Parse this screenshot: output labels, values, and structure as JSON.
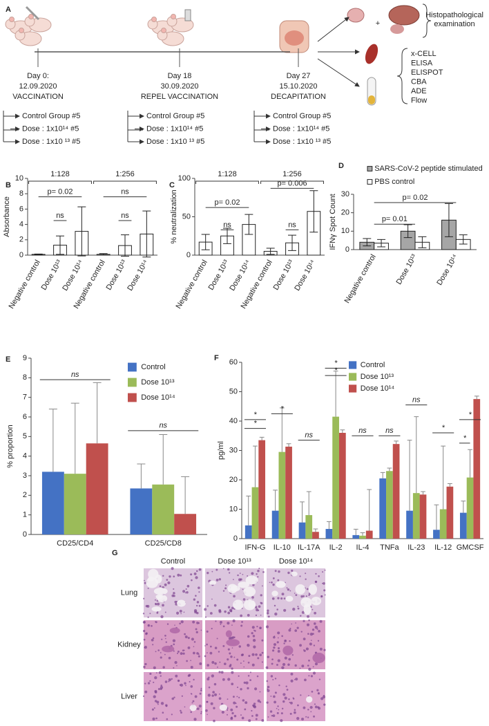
{
  "panel_a": {
    "label": "A",
    "timeline": [
      {
        "day": "Day 0:",
        "date": "12.09.2020",
        "event": "VACCINATION"
      },
      {
        "day": "Day 18",
        "date": "30.09.2020",
        "event": "REPEL VACCINATION"
      },
      {
        "day": "Day 27",
        "date": "15.10.2020",
        "event": "DECAPITATION"
      }
    ],
    "groups": [
      "Control Group #5",
      "Dose : 1x10¹⁴  #5",
      "Dose : 1x10 ¹³ #5"
    ],
    "plus": "+",
    "histopathology": [
      "Histopathological",
      "examination"
    ],
    "assays": [
      "x-CELL",
      "ELISA",
      "ELISPOT",
      "CBA",
      "ADE",
      "Flow"
    ]
  },
  "chart_data": [
    {
      "panel": "B",
      "type": "bar",
      "y_label": "Absorbance",
      "categories": [
        "Negative control",
        "Dose 10¹³",
        "Dose 10¹⁴",
        "Negative control",
        "Dose 10¹³",
        "Dose 10¹⁴"
      ],
      "groups": [
        "1:128",
        "1:256"
      ],
      "values": [
        0.1,
        1.3,
        3.1,
        0.1,
        1.25,
        2.75
      ],
      "errors": [
        0.05,
        1.2,
        3.2,
        0.1,
        1.4,
        3.0
      ],
      "color": "#ffffff",
      "ylim": [
        0,
        10
      ],
      "yticks": [
        0,
        2,
        4,
        6,
        8,
        10
      ],
      "annotations": [
        "p= 0.02",
        "ns",
        "ns",
        "ns"
      ]
    },
    {
      "panel": "C",
      "type": "bar",
      "y_label": "% neutralization",
      "categories": [
        "Negative control",
        "Dose 10¹³",
        "Dose 10¹⁴",
        "Negative control",
        "Dose 10¹³",
        "Dose 10¹⁴"
      ],
      "groups": [
        "1:128",
        "1:256"
      ],
      "values": [
        17,
        25,
        40,
        5,
        16,
        57
      ],
      "errors": [
        10,
        10,
        13,
        4,
        10,
        27
      ],
      "color": "#ffffff",
      "ylim": [
        0,
        100
      ],
      "yticks": [
        0,
        50,
        100
      ],
      "annotations": [
        "ns",
        "p= 0.02",
        "ns",
        "p= 0.006"
      ]
    },
    {
      "panel": "D",
      "type": "bar",
      "y_label": "IFNγ Spot Count",
      "categories": [
        "Negative control",
        "Dose 10¹³",
        "Dose 10¹⁴"
      ],
      "series": [
        {
          "name": "SARS-CoV-2 peptide stimulated",
          "color": "#a6a6a6",
          "values": [
            4,
            10,
            16
          ],
          "errors": [
            2,
            3.5,
            9
          ]
        },
        {
          "name": "PBS control",
          "color": "#ffffff",
          "values": [
            3.5,
            4,
            5.5
          ],
          "errors": [
            2,
            3,
            2.5
          ]
        }
      ],
      "ylim": [
        0,
        30
      ],
      "yticks": [
        0,
        10,
        20,
        30
      ],
      "annotations": [
        "p= 0.01",
        "p= 0.02"
      ]
    },
    {
      "panel": "E",
      "type": "bar",
      "y_label": "% proportion",
      "categories": [
        "CD25/CD4",
        "CD25/CD8"
      ],
      "series": [
        {
          "name": "Control",
          "color": "#4472c4",
          "values": [
            3.2,
            2.35
          ],
          "errors": [
            3.2,
            1.25
          ]
        },
        {
          "name": "Dose 10¹³",
          "color": "#9bbb59",
          "values": [
            3.1,
            2.55
          ],
          "errors": [
            3.6,
            2.55
          ]
        },
        {
          "name": "Dose 10¹⁴",
          "color": "#c0504d",
          "values": [
            4.65,
            1.05
          ],
          "errors": [
            3.1,
            1.9
          ]
        }
      ],
      "ylim": [
        0,
        9
      ],
      "yticks": [
        0,
        1,
        2,
        3,
        4,
        5,
        6,
        7,
        8,
        9
      ],
      "annotations": [
        "ns",
        "ns"
      ]
    },
    {
      "panel": "F",
      "type": "bar",
      "y_label": "pg/ml",
      "categories": [
        "IFN-G",
        "IL-10",
        "IL-17A",
        "IL-2",
        "IL-4",
        "TNFa",
        "IL-23",
        "IL-12",
        "GMCSF"
      ],
      "series": [
        {
          "name": "Control",
          "color": "#4472c4",
          "values": [
            4.5,
            9.5,
            5.5,
            3.3,
            1.2,
            20.5,
            9.5,
            3,
            8.8
          ],
          "errors": [
            10,
            7,
            7,
            2.5,
            2,
            2,
            24,
            8.5,
            4
          ]
        },
        {
          "name": "Dose 10¹³",
          "color": "#9bbb59",
          "values": [
            17.5,
            29.5,
            8,
            41.5,
            1,
            23,
            15.5,
            10,
            20.8
          ],
          "errors": [
            14,
            15,
            8,
            15.5,
            1,
            1,
            26,
            21.5,
            9.5
          ]
        },
        {
          "name": "Dose 10¹⁴",
          "color": "#c0504d",
          "values": [
            33.5,
            31.3,
            2.3,
            36,
            2.7,
            32.2,
            15,
            17.7,
            47.5
          ],
          "errors": [
            1,
            1,
            1,
            1,
            14,
            1,
            1,
            1,
            1
          ]
        }
      ],
      "ylim": [
        0,
        60
      ],
      "yticks": [
        0,
        10,
        20,
        30,
        40,
        50,
        60
      ],
      "annotations": [
        "*",
        "*",
        "*",
        "ns",
        "*",
        "*",
        "ns",
        "ns",
        "ns",
        "*",
        "*",
        "*"
      ]
    }
  ],
  "panel_g": {
    "label": "G",
    "columns": [
      "Control",
      "Dose 10¹³",
      "Dose 10¹⁴"
    ],
    "rows": [
      "Lung",
      "Kidney",
      "Liver"
    ]
  }
}
